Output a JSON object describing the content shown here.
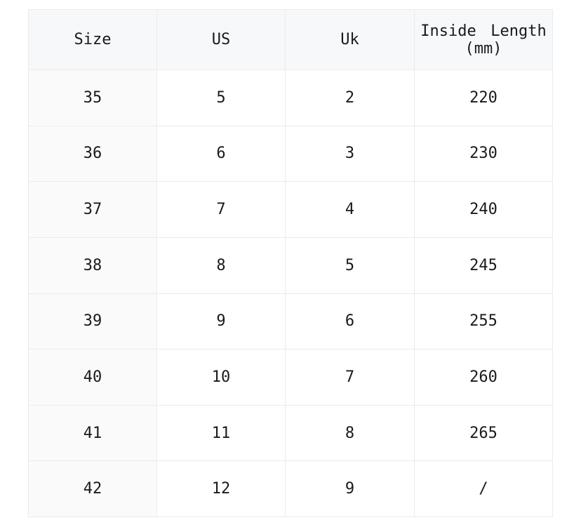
{
  "size_chart": {
    "columns": [
      "Size",
      "US",
      "Uk",
      "Inside Length (mm)"
    ],
    "rows": [
      [
        "35",
        "5",
        "2",
        "220"
      ],
      [
        "36",
        "6",
        "3",
        "230"
      ],
      [
        "37",
        "7",
        "4",
        "240"
      ],
      [
        "38",
        "8",
        "5",
        "245"
      ],
      [
        "39",
        "9",
        "6",
        "255"
      ],
      [
        "40",
        "10",
        "7",
        "260"
      ],
      [
        "41",
        "11",
        "8",
        "265"
      ],
      [
        "42",
        "12",
        "9",
        "/"
      ]
    ]
  },
  "colors": {
    "page_bg": "#ffffff",
    "header_bg": "#f7f8f9",
    "first_col_bg": "#fafafb",
    "border_color": "#eaebed",
    "text_color": "#1a1a1c"
  }
}
